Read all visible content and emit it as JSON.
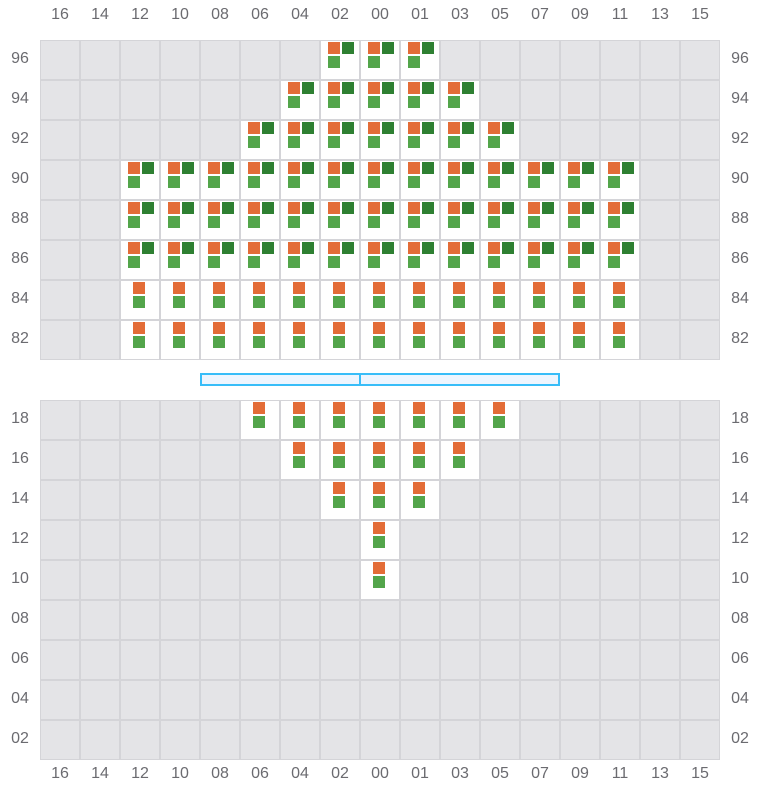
{
  "columns": [
    "16",
    "14",
    "12",
    "10",
    "08",
    "06",
    "04",
    "02",
    "00",
    "01",
    "03",
    "05",
    "07",
    "09",
    "11",
    "13",
    "15"
  ],
  "colors": {
    "marker_a": "#e36c37",
    "marker_b": "#2e8032",
    "marker_c": "#53a54b",
    "divider": "#38bdf8"
  },
  "sections": [
    {
      "rows": [
        {
          "label": "96",
          "active": [
            "02",
            "00",
            "01"
          ],
          "type": "full"
        },
        {
          "label": "94",
          "active": [
            "04",
            "02",
            "00",
            "01",
            "03"
          ],
          "type": "full"
        },
        {
          "label": "92",
          "active": [
            "06",
            "04",
            "02",
            "00",
            "01",
            "03",
            "05"
          ],
          "type": "full"
        },
        {
          "label": "90",
          "active": [
            "12",
            "10",
            "08",
            "06",
            "04",
            "02",
            "00",
            "01",
            "03",
            "05",
            "07",
            "09",
            "11"
          ],
          "type": "full"
        },
        {
          "label": "88",
          "active": [
            "12",
            "10",
            "08",
            "06",
            "04",
            "02",
            "00",
            "01",
            "03",
            "05",
            "07",
            "09",
            "11"
          ],
          "type": "full"
        },
        {
          "label": "86",
          "active": [
            "12",
            "10",
            "08",
            "06",
            "04",
            "02",
            "00",
            "01",
            "03",
            "05",
            "07",
            "09",
            "11"
          ],
          "type": "full"
        },
        {
          "label": "84",
          "active": [
            "12",
            "10",
            "08",
            "06",
            "04",
            "02",
            "00",
            "01",
            "03",
            "05",
            "07",
            "09",
            "11"
          ],
          "type": "pair"
        },
        {
          "label": "82",
          "active": [
            "12",
            "10",
            "08",
            "06",
            "04",
            "02",
            "00",
            "01",
            "03",
            "05",
            "07",
            "09",
            "11"
          ],
          "type": "pair"
        }
      ]
    },
    {
      "rows": [
        {
          "label": "18",
          "active": [
            "06",
            "04",
            "02",
            "00",
            "01",
            "03",
            "05"
          ],
          "type": "pair"
        },
        {
          "label": "16",
          "active": [
            "04",
            "02",
            "00",
            "01",
            "03"
          ],
          "type": "pair"
        },
        {
          "label": "14",
          "active": [
            "02",
            "00",
            "01"
          ],
          "type": "pair"
        },
        {
          "label": "12",
          "active": [
            "00"
          ],
          "type": "pair"
        },
        {
          "label": "10",
          "active": [
            "00"
          ],
          "type": "pair"
        },
        {
          "label": "08",
          "active": [],
          "type": "pair"
        },
        {
          "label": "06",
          "active": [],
          "type": "pair"
        },
        {
          "label": "04",
          "active": [],
          "type": "pair"
        },
        {
          "label": "02",
          "active": [],
          "type": "pair"
        }
      ]
    }
  ]
}
